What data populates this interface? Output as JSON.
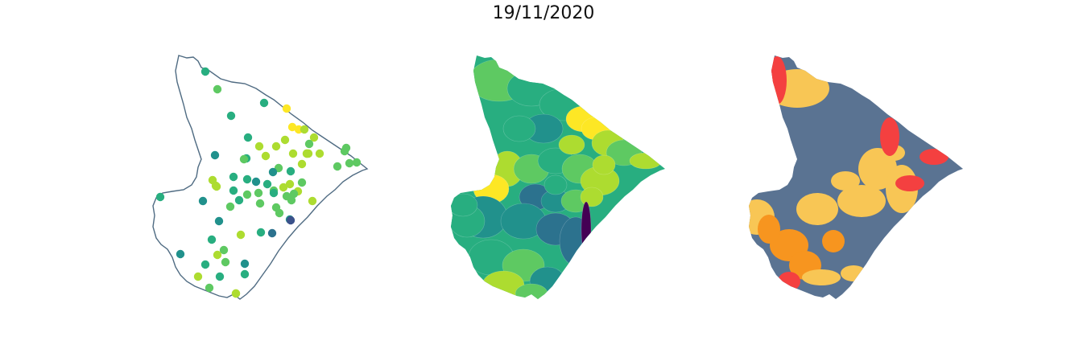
{
  "title": "19/11/2020",
  "colors": {
    "outline": "#4f6b82",
    "viridis": [
      "#440154",
      "#3b528b",
      "#2c728e",
      "#21918c",
      "#28ae80",
      "#5ec962",
      "#addc30",
      "#fde725"
    ],
    "class": {
      "low": "#5a7392",
      "mid": "#f8c655",
      "high": "#f7951f",
      "severe": "#f44040"
    }
  },
  "maps": [
    {
      "name": "points-map",
      "kind": "stations"
    },
    {
      "name": "choropleth-map",
      "kind": "continuous"
    },
    {
      "name": "class-map",
      "kind": "categorical"
    }
  ]
}
